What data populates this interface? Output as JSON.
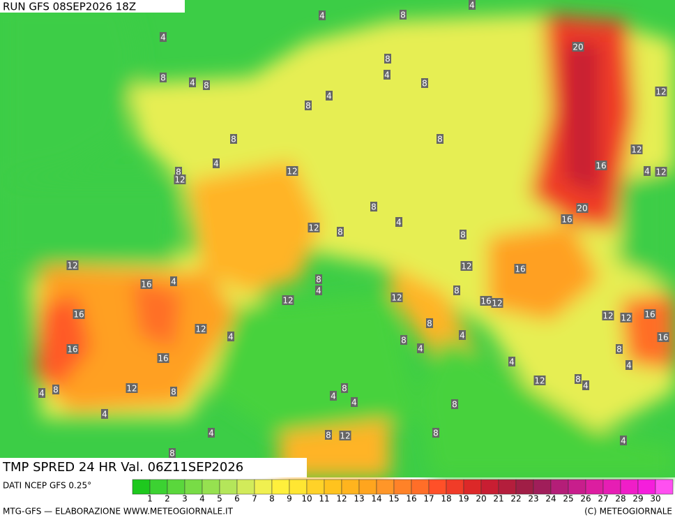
{
  "header": {
    "run": "RUN GFS 08SEP2026 18Z"
  },
  "map": {
    "title": "TMP SPRED 24 HR Val. 06Z11SEP2026",
    "contour_labels": [
      4,
      4,
      4,
      8,
      8,
      8,
      4,
      8,
      4,
      8,
      20,
      12,
      4,
      8,
      8,
      8,
      12,
      4,
      12,
      8,
      12,
      16,
      4,
      12,
      8,
      20,
      16,
      12,
      8,
      4,
      8,
      12,
      12,
      16,
      16,
      4,
      8,
      4,
      8,
      12,
      12,
      16,
      12,
      16,
      8,
      12,
      12,
      16,
      12,
      4,
      4,
      8,
      16,
      4,
      16,
      8,
      16,
      4,
      4,
      12,
      8,
      4,
      12,
      8,
      4,
      8,
      4,
      8,
      4,
      8,
      4,
      8,
      8,
      12,
      4,
      4,
      8
    ]
  },
  "colorbar": {
    "source": "DATI NCEP GFS 0.25°",
    "labels": [
      1,
      2,
      3,
      4,
      5,
      6,
      7,
      8,
      9,
      10,
      11,
      12,
      13,
      14,
      15,
      16,
      17,
      18,
      19,
      20,
      21,
      22,
      23,
      24,
      25,
      26,
      27,
      28,
      29,
      30
    ],
    "colors": [
      "#1ec81e",
      "#3cd232",
      "#5ad73c",
      "#78dc46",
      "#96e150",
      "#b4e65a",
      "#d2eb5a",
      "#f0f050",
      "#fff03c",
      "#ffe632",
      "#ffd228",
      "#ffc31e",
      "#ffb41e",
      "#ffa51e",
      "#ff9628",
      "#ff8228",
      "#ff6e28",
      "#ff5028",
      "#f03c28",
      "#dc2828",
      "#c81e32",
      "#b41e3c",
      "#a01e46",
      "#a01e5a",
      "#b41e78",
      "#c81e8c",
      "#dc1ea0",
      "#e61eb4",
      "#f01ec8",
      "#f51edc",
      "#ff50f0"
    ]
  },
  "footer": {
    "left": "MTG-GFS — ELABORAZIONE WWW.METEOGIORNALE.IT",
    "right": "(C) METEOGIORNALE"
  }
}
